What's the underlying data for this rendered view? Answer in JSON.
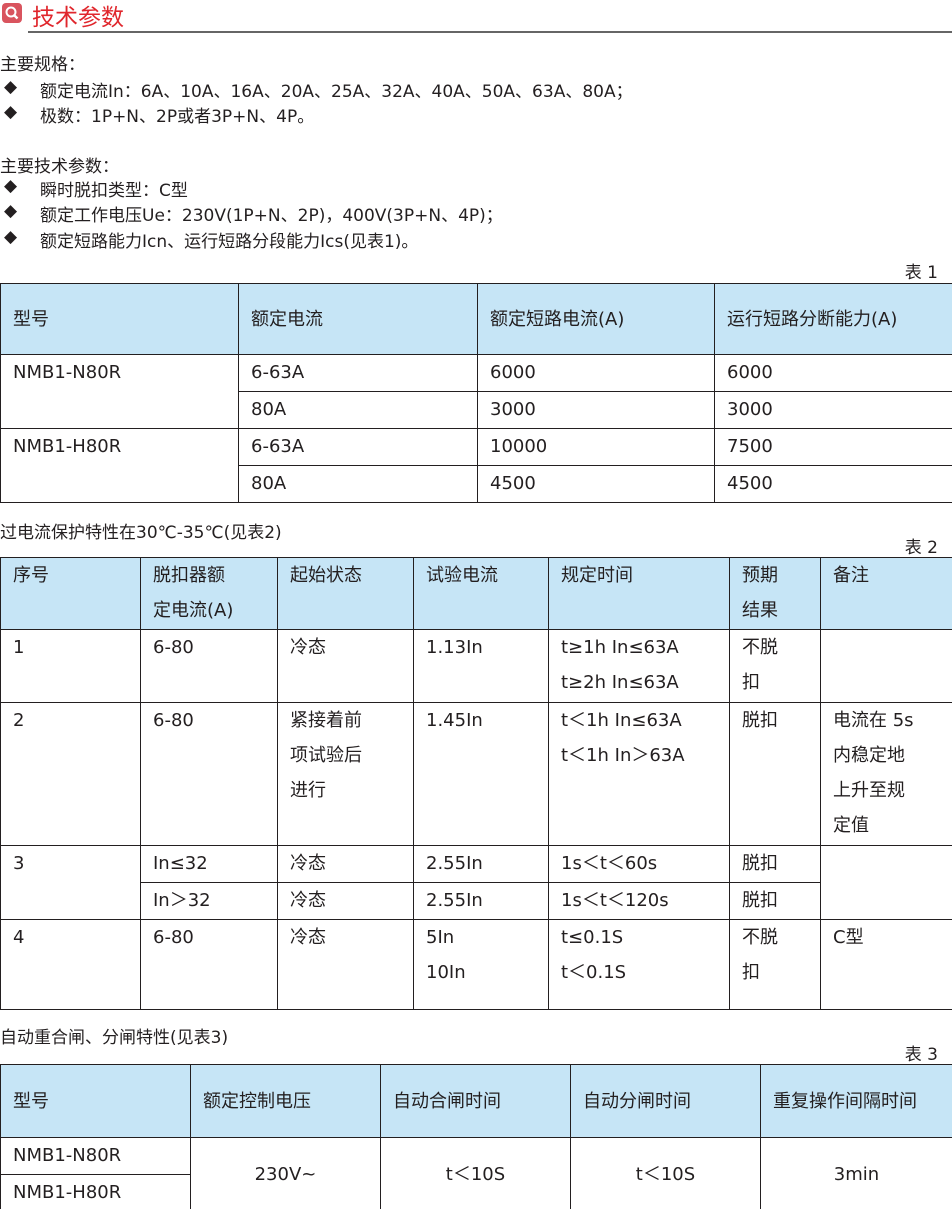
{
  "header": {
    "title": "技术参数",
    "icon": "search-icon",
    "accent": "#e0262c"
  },
  "spec": {
    "heading": "主要规格：",
    "bullets": [
      "额定电流In：6A、10A、16A、20A、25A、32A、40A、50A、63A、80A；",
      "极数：1P+N、2P或者3P+N、4P。"
    ]
  },
  "params": {
    "heading": "主要技术参数：",
    "bullets": [
      "瞬时脱扣类型：C型",
      "额定工作电压Ue：230V(1P+N、2P)，400V(3P+N、4P)；",
      "额定短路能力Icn、运行短路分段能力Ics(见表1)。"
    ]
  },
  "table1": {
    "label": "表 1",
    "headers": [
      "型号",
      "额定电流",
      "额定短路电流(A)",
      "运行短路分断能力(A)"
    ],
    "rows": [
      {
        "model": "NMB1-N80R",
        "sub": [
          [
            "6-63A",
            "6000",
            "6000"
          ],
          [
            "80A",
            "3000",
            "3000"
          ]
        ]
      },
      {
        "model": "NMB1-H80R",
        "sub": [
          [
            "6-63A",
            "10000",
            "7500"
          ],
          [
            "80A",
            "4500",
            "4500"
          ]
        ]
      }
    ]
  },
  "table2": {
    "caption": "过电流保护特性在30℃-35℃(见表2)",
    "label": "表 2",
    "headers": [
      [
        "序号"
      ],
      [
        "脱扣器额",
        "定电流(A)"
      ],
      [
        "起始状态"
      ],
      [
        "试验电流"
      ],
      [
        "规定时间"
      ],
      [
        "预期",
        "结果"
      ],
      [
        "备注"
      ]
    ],
    "rows": [
      {
        "no": "1",
        "current": [
          "6-80"
        ],
        "state": [
          "冷态"
        ],
        "test": [
          "1.13In"
        ],
        "time": [
          "t≥1h  In≤63A",
          "t≥2h  In≤63A"
        ],
        "result": [
          "不脱",
          "扣"
        ],
        "note": []
      },
      {
        "no": "2",
        "current": [
          "6-80"
        ],
        "state": [
          "紧接着前",
          "项试验后",
          "进行"
        ],
        "test": [
          "1.45In"
        ],
        "time": [
          "t＜1h  In≤63A",
          "t＜1h  In＞63A"
        ],
        "result": [
          "脱扣"
        ],
        "note": [
          "电流在  5s",
          "内稳定地",
          "上升至规",
          "定值"
        ]
      },
      {
        "no": "3",
        "sub": [
          {
            "current": [
              "In≤32"
            ],
            "state": [
              "冷态"
            ],
            "test": [
              "2.55In"
            ],
            "time": [
              "1s＜t＜60s"
            ],
            "result": [
              "脱扣"
            ]
          },
          {
            "current": [
              "In＞32"
            ],
            "state": [
              "冷态"
            ],
            "test": [
              "2.55In"
            ],
            "time": [
              "1s＜t＜120s"
            ],
            "result": [
              "脱扣"
            ]
          }
        ],
        "note": []
      },
      {
        "no": "4",
        "current": [
          "6-80"
        ],
        "state": [
          "冷态"
        ],
        "test": [
          "5In",
          "10In"
        ],
        "time": [
          "t≤0.1S",
          "t＜0.1S"
        ],
        "result": [
          "不脱",
          "扣"
        ],
        "note": [
          "C型"
        ]
      }
    ]
  },
  "table3": {
    "caption": "自动重合闸、分闸特性(见表3)",
    "label": "表 3",
    "headers": [
      "型号",
      "额定控制电压",
      "自动合闸时间",
      "自动分闸时间",
      "重复操作间隔时间"
    ],
    "models": [
      "NMB1-N80R",
      "NMB1-H80R"
    ],
    "values": [
      "230V~",
      "t＜10S",
      "t＜10S",
      "3min"
    ]
  }
}
